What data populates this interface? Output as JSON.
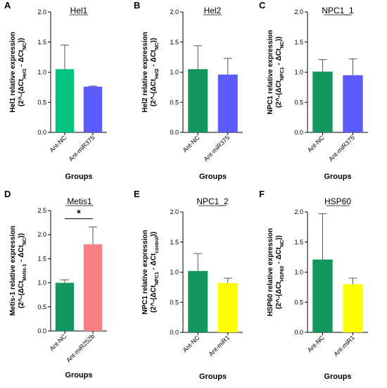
{
  "chart_data": [
    {
      "panel": "A",
      "type": "bar",
      "title": "Hel1",
      "ylabel": [
        "Hel1 relative expression",
        "(2^-(ΔCt",
        "Hel1",
        " - ΔCt",
        "NC",
        "))"
      ],
      "xlabel": "Groups",
      "categories": [
        "Ant-NC",
        "Ant-miR375"
      ],
      "values": [
        1.05,
        0.76
      ],
      "errors": [
        0.4,
        0.01
      ],
      "colors": [
        "#00c47e",
        "#5b5bff"
      ],
      "ylim": [
        0,
        2.0
      ],
      "yticks": [
        "0.0",
        "0.5",
        "1.0",
        "1.5",
        "2.0"
      ],
      "yticks_v": [
        0,
        0.5,
        1.0,
        1.5,
        2.0
      ]
    },
    {
      "panel": "B",
      "type": "bar",
      "title": "Hel2",
      "ylabel": [
        "Hel2 relative expression",
        "(2^-(ΔCt",
        "Hel2",
        " - ΔCt",
        "NC",
        "))"
      ],
      "xlabel": "Groups",
      "categories": [
        "Ant-NC",
        "Ant-miR375"
      ],
      "values": [
        1.05,
        0.96
      ],
      "errors": [
        0.39,
        0.27
      ],
      "colors": [
        "#13975f",
        "#5b5bff"
      ],
      "ylim": [
        0,
        2.0
      ],
      "yticks": [
        "0.0",
        "0.5",
        "1.0",
        "1.5",
        "2.0"
      ],
      "yticks_v": [
        0,
        0.5,
        1.0,
        1.5,
        2.0
      ]
    },
    {
      "panel": "C",
      "type": "bar",
      "title": "NPC1_1",
      "ylabel": [
        "NPC1 relative expression",
        "(2^-(ΔCt",
        "NPC1",
        " - ΔCt",
        "NC",
        "))"
      ],
      "xlabel": "Groups",
      "categories": [
        "Ant-NC",
        "Ant-miR375"
      ],
      "values": [
        1.01,
        0.95
      ],
      "errors": [
        0.2,
        0.27
      ],
      "colors": [
        "#13975f",
        "#5b5bff"
      ],
      "ylim": [
        0,
        2.0
      ],
      "yticks": [
        "0.0",
        "0.5",
        "1.0",
        "1.5",
        "2.0"
      ],
      "yticks_v": [
        0,
        0.5,
        1.0,
        1.5,
        2.0
      ]
    },
    {
      "panel": "D",
      "type": "bar",
      "title": "Metis1",
      "ylabel": [
        "Metis-1 relative expression",
        "(2^-(ΔCt",
        "Metis-1",
        " - ΔCt",
        "NC",
        "))"
      ],
      "xlabel": "Groups",
      "categories": [
        "Ant-NC",
        "Ant-miR252b"
      ],
      "values": [
        1.0,
        1.8
      ],
      "errors": [
        0.06,
        0.36
      ],
      "colors": [
        "#13975f",
        "#f88080"
      ],
      "ylim": [
        0,
        2.5
      ],
      "yticks": [
        "0.0",
        "0.5",
        "1.0",
        "1.5",
        "2.0",
        "2.5"
      ],
      "yticks_v": [
        0,
        0.5,
        1.0,
        1.5,
        2.0,
        2.5
      ],
      "significance": "*"
    },
    {
      "panel": "E",
      "type": "bar",
      "title": "NPC1_2",
      "ylabel": [
        "NPC1 relative expression",
        "(2^-(ΔCt",
        "NPC1",
        " - ΔCt",
        "control",
        "))"
      ],
      "xlabel": "Groups",
      "categories": [
        "Ant-NC",
        "Ant-miR1"
      ],
      "values": [
        1.02,
        0.82
      ],
      "errors": [
        0.29,
        0.08
      ],
      "colors": [
        "#13975f",
        "#ffff00"
      ],
      "ylim": [
        0,
        2.0
      ],
      "yticks": [
        "0.0",
        "0.5",
        "1.0",
        "1.5",
        "2.0"
      ],
      "yticks_v": [
        0,
        0.5,
        1.0,
        1.5,
        2.0
      ]
    },
    {
      "panel": "F",
      "type": "bar",
      "title": "HSP60",
      "ylabel": [
        "HSP60 relative expression",
        "(2^-(ΔCt",
        "HSP60",
        " - ΔCt",
        "NC",
        "))"
      ],
      "xlabel": "Groups",
      "categories": [
        "Ant-NC",
        "Ant-miR1"
      ],
      "values": [
        1.21,
        0.8
      ],
      "errors": [
        0.76,
        0.1
      ],
      "colors": [
        "#13975f",
        "#ffff00"
      ],
      "ylim": [
        0,
        2.0
      ],
      "yticks": [
        "0.0",
        "0.5",
        "1.0",
        "1.5",
        "2.0"
      ],
      "yticks_v": [
        0,
        0.5,
        1.0,
        1.5,
        2.0
      ]
    }
  ]
}
